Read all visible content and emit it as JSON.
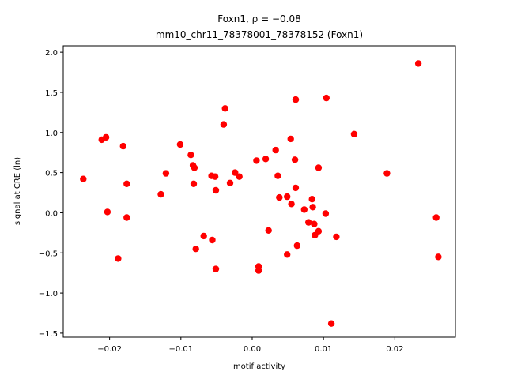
{
  "chart_data": {
    "type": "scatter",
    "title_line1": "Foxn1, ρ = −0.08",
    "title_line2": "mm10_chr11_78378001_78378152 (Foxn1)",
    "xlabel": "motif activity",
    "ylabel": "signal at CRE (ln)",
    "xlim": [
      -0.0265,
      0.0285
    ],
    "ylim": [
      -1.55,
      2.08
    ],
    "xticks": [
      -0.02,
      -0.01,
      0.0,
      0.01,
      0.02
    ],
    "xtick_labels": [
      "−0.02",
      "−0.01",
      "0.00",
      "0.01",
      "0.02"
    ],
    "yticks": [
      -1.5,
      -1.0,
      -0.5,
      0.0,
      0.5,
      1.0,
      1.5,
      2.0
    ],
    "ytick_labels": [
      "−1.5",
      "−1.0",
      "−0.5",
      "0.0",
      "0.5",
      "1.0",
      "1.5",
      "2.0"
    ],
    "grid": false,
    "marker_color": "#ff0000",
    "points": [
      {
        "x": -0.0237,
        "y": 0.42
      },
      {
        "x": -0.0211,
        "y": 0.91
      },
      {
        "x": -0.0205,
        "y": 0.94
      },
      {
        "x": -0.0203,
        "y": 0.01
      },
      {
        "x": -0.0188,
        "y": -0.57
      },
      {
        "x": -0.0181,
        "y": 0.83
      },
      {
        "x": -0.0176,
        "y": 0.36
      },
      {
        "x": -0.0176,
        "y": -0.06
      },
      {
        "x": -0.0128,
        "y": 0.23
      },
      {
        "x": -0.0121,
        "y": 0.49
      },
      {
        "x": -0.0101,
        "y": 0.85
      },
      {
        "x": -0.0086,
        "y": 0.72
      },
      {
        "x": -0.0083,
        "y": 0.59
      },
      {
        "x": -0.0081,
        "y": 0.56
      },
      {
        "x": -0.0082,
        "y": 0.36
      },
      {
        "x": -0.0079,
        "y": -0.45
      },
      {
        "x": -0.0068,
        "y": -0.29
      },
      {
        "x": -0.0057,
        "y": 0.46
      },
      {
        "x": -0.0052,
        "y": 0.45
      },
      {
        "x": -0.0051,
        "y": 0.28
      },
      {
        "x": -0.0056,
        "y": -0.34
      },
      {
        "x": -0.0051,
        "y": -0.7
      },
      {
        "x": -0.0038,
        "y": 1.3
      },
      {
        "x": -0.004,
        "y": 1.1
      },
      {
        "x": -0.0031,
        "y": 0.37
      },
      {
        "x": -0.0024,
        "y": 0.5
      },
      {
        "x": -0.0018,
        "y": 0.45
      },
      {
        "x": 0.0006,
        "y": 0.65
      },
      {
        "x": 0.0019,
        "y": 0.67
      },
      {
        "x": 0.0009,
        "y": -0.67
      },
      {
        "x": 0.0009,
        "y": -0.72
      },
      {
        "x": 0.0023,
        "y": -0.22
      },
      {
        "x": 0.0033,
        "y": 0.78
      },
      {
        "x": 0.0036,
        "y": 0.46
      },
      {
        "x": 0.0038,
        "y": 0.19
      },
      {
        "x": 0.0049,
        "y": 0.2
      },
      {
        "x": 0.0054,
        "y": 0.92
      },
      {
        "x": 0.0055,
        "y": 0.11
      },
      {
        "x": 0.0049,
        "y": -0.52
      },
      {
        "x": 0.0061,
        "y": 1.41
      },
      {
        "x": 0.006,
        "y": 0.66
      },
      {
        "x": 0.0061,
        "y": 0.31
      },
      {
        "x": 0.0063,
        "y": -0.41
      },
      {
        "x": 0.0073,
        "y": 0.04
      },
      {
        "x": 0.0079,
        "y": -0.12
      },
      {
        "x": 0.0084,
        "y": 0.17
      },
      {
        "x": 0.0085,
        "y": 0.07
      },
      {
        "x": 0.0087,
        "y": -0.14
      },
      {
        "x": 0.0088,
        "y": -0.28
      },
      {
        "x": 0.0093,
        "y": 0.56
      },
      {
        "x": 0.0093,
        "y": -0.23
      },
      {
        "x": 0.0104,
        "y": 1.43
      },
      {
        "x": 0.0103,
        "y": -0.01
      },
      {
        "x": 0.0111,
        "y": -1.38
      },
      {
        "x": 0.0118,
        "y": -0.3
      },
      {
        "x": 0.0143,
        "y": 0.98
      },
      {
        "x": 0.0189,
        "y": 0.49
      },
      {
        "x": 0.0233,
        "y": 1.86
      },
      {
        "x": 0.0258,
        "y": -0.06
      },
      {
        "x": 0.0261,
        "y": -0.55
      }
    ]
  }
}
